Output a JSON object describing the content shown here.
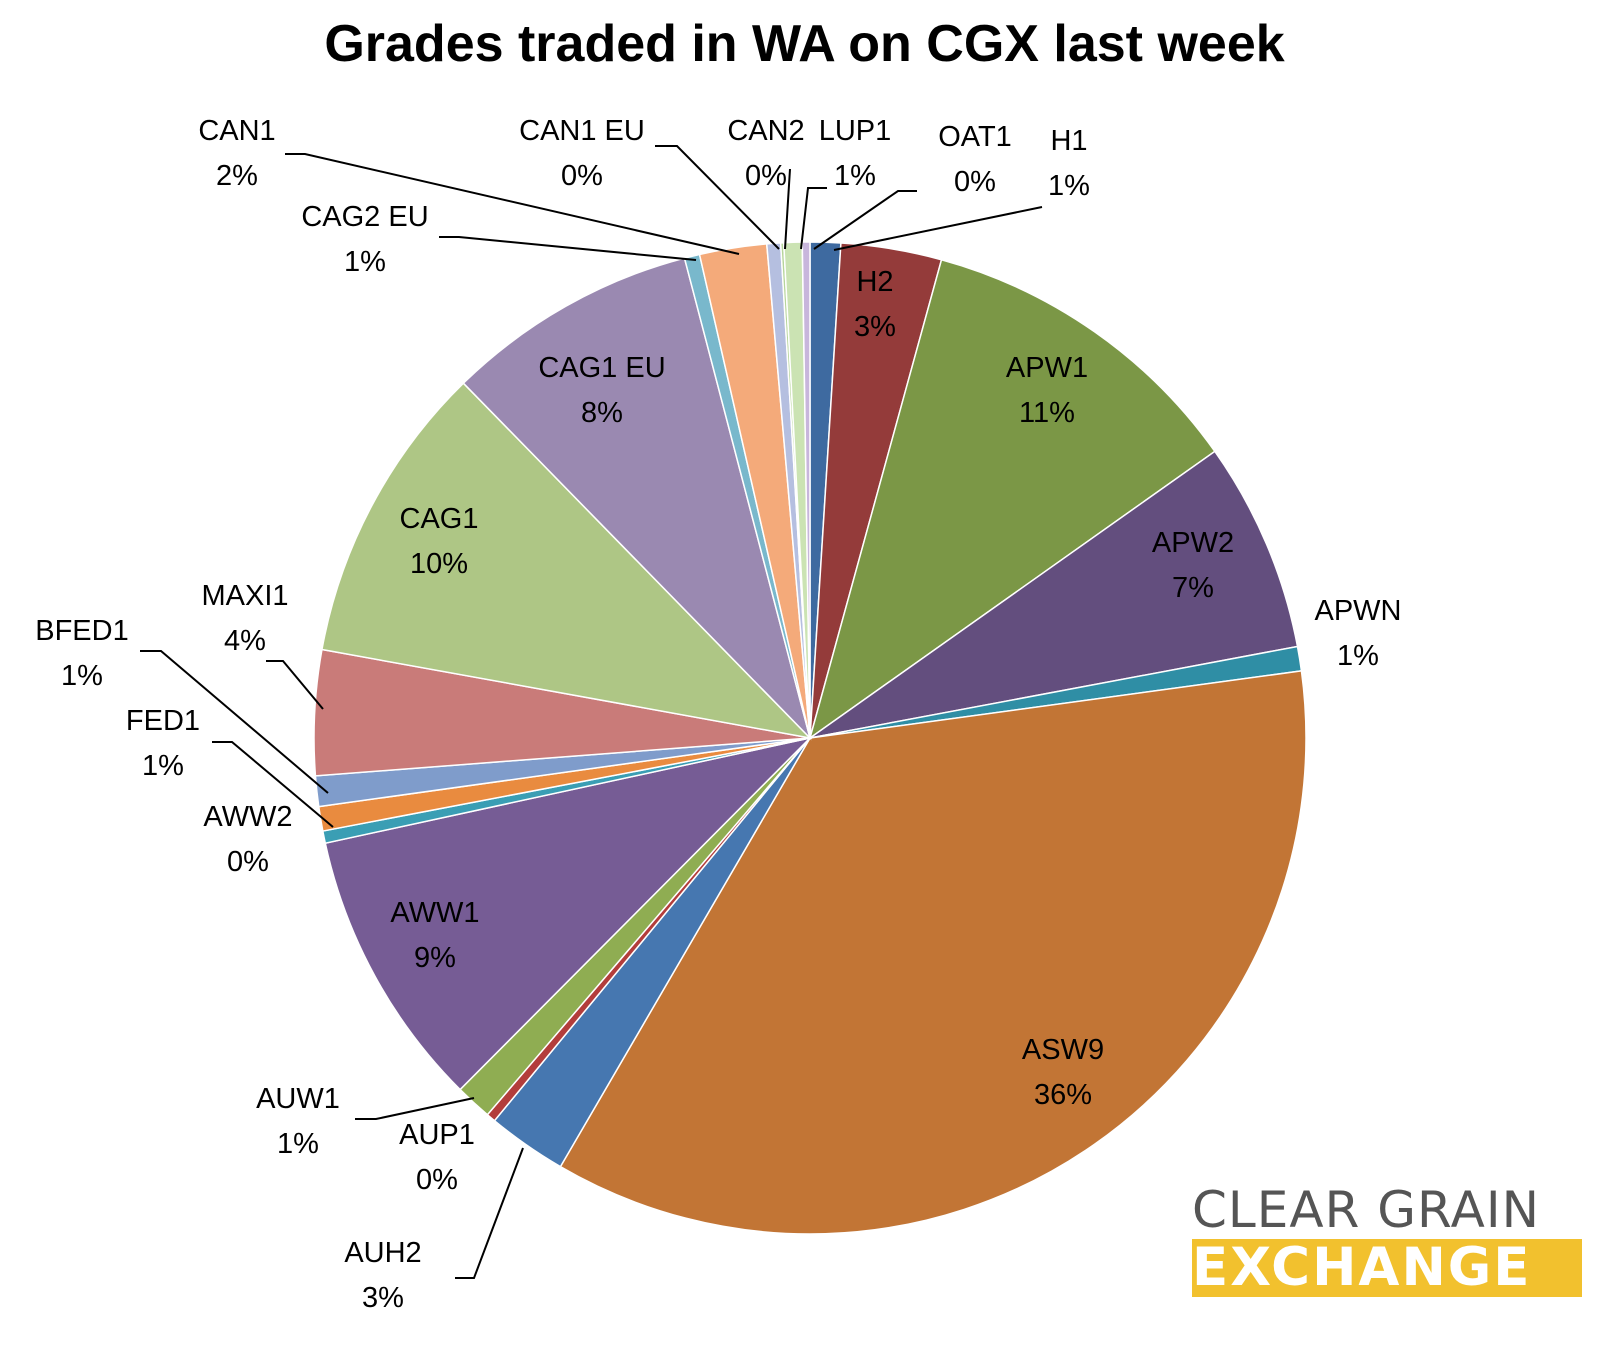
{
  "chart_data": {
    "type": "pie",
    "title": "Grades traded in WA on CGX last week",
    "slices": [
      {
        "label": "H1",
        "percent_label": "1%",
        "value": 1.0,
        "color": "#3e6aa0"
      },
      {
        "label": "H2",
        "percent_label": "3%",
        "value": 3.3,
        "color": "#943b3a"
      },
      {
        "label": "APW1",
        "percent_label": "11%",
        "value": 11.0,
        "color": "#7b9746"
      },
      {
        "label": "APW2",
        "percent_label": "7%",
        "value": 6.9,
        "color": "#634e7e"
      },
      {
        "label": "APWN",
        "percent_label": "1%",
        "value": 0.8,
        "color": "#2f8ea5"
      },
      {
        "label": "ASW9",
        "percent_label": "36%",
        "value": 35.8,
        "color": "#c27535"
      },
      {
        "label": "AUH2",
        "percent_label": "3%",
        "value": 2.6,
        "color": "#4677b0"
      },
      {
        "label": "AUP1",
        "percent_label": "0%",
        "value": 0.3,
        "color": "#b33d3b"
      },
      {
        "label": "AUW1",
        "percent_label": "1%",
        "value": 1.2,
        "color": "#8fad52"
      },
      {
        "label": "AWW1",
        "percent_label": "9%",
        "value": 9.2,
        "color": "#765c95"
      },
      {
        "label": "AWW2",
        "percent_label": "0%",
        "value": 0.4,
        "color": "#3a9eb4"
      },
      {
        "label": "FED1",
        "percent_label": "1%",
        "value": 0.8,
        "color": "#e98b3f"
      },
      {
        "label": "BFED1",
        "percent_label": "1%",
        "value": 1.0,
        "color": "#7f9ccb"
      },
      {
        "label": "MAXI1",
        "percent_label": "4%",
        "value": 4.1,
        "color": "#c97b79"
      },
      {
        "label": "CAG1",
        "percent_label": "10%",
        "value": 9.9,
        "color": "#aec685"
      },
      {
        "label": "CAG1 EU",
        "percent_label": "8%",
        "value": 8.3,
        "color": "#9a89b1"
      },
      {
        "label": "CAG2 EU",
        "percent_label": "1%",
        "value": 0.5,
        "color": "#79b8cc"
      },
      {
        "label": "CAN1",
        "percent_label": "2%",
        "value": 2.2,
        "color": "#f4aa7a"
      },
      {
        "label": "CAN1 EU",
        "percent_label": "0%",
        "value": 0.45,
        "color": "#b5bfe0"
      },
      {
        "label": "CAN2",
        "percent_label": "0%",
        "value": 0.1,
        "color": "#b7d59b"
      },
      {
        "label": "LUP1",
        "percent_label": "1%",
        "value": 0.6,
        "color": "#cbe3b3"
      },
      {
        "label": "OAT1",
        "percent_label": "0%",
        "value": 0.25,
        "color": "#c8b6dc"
      }
    ]
  },
  "logo": {
    "line1": "CLEAR GRAIN",
    "line2": "EXCHANGE"
  }
}
